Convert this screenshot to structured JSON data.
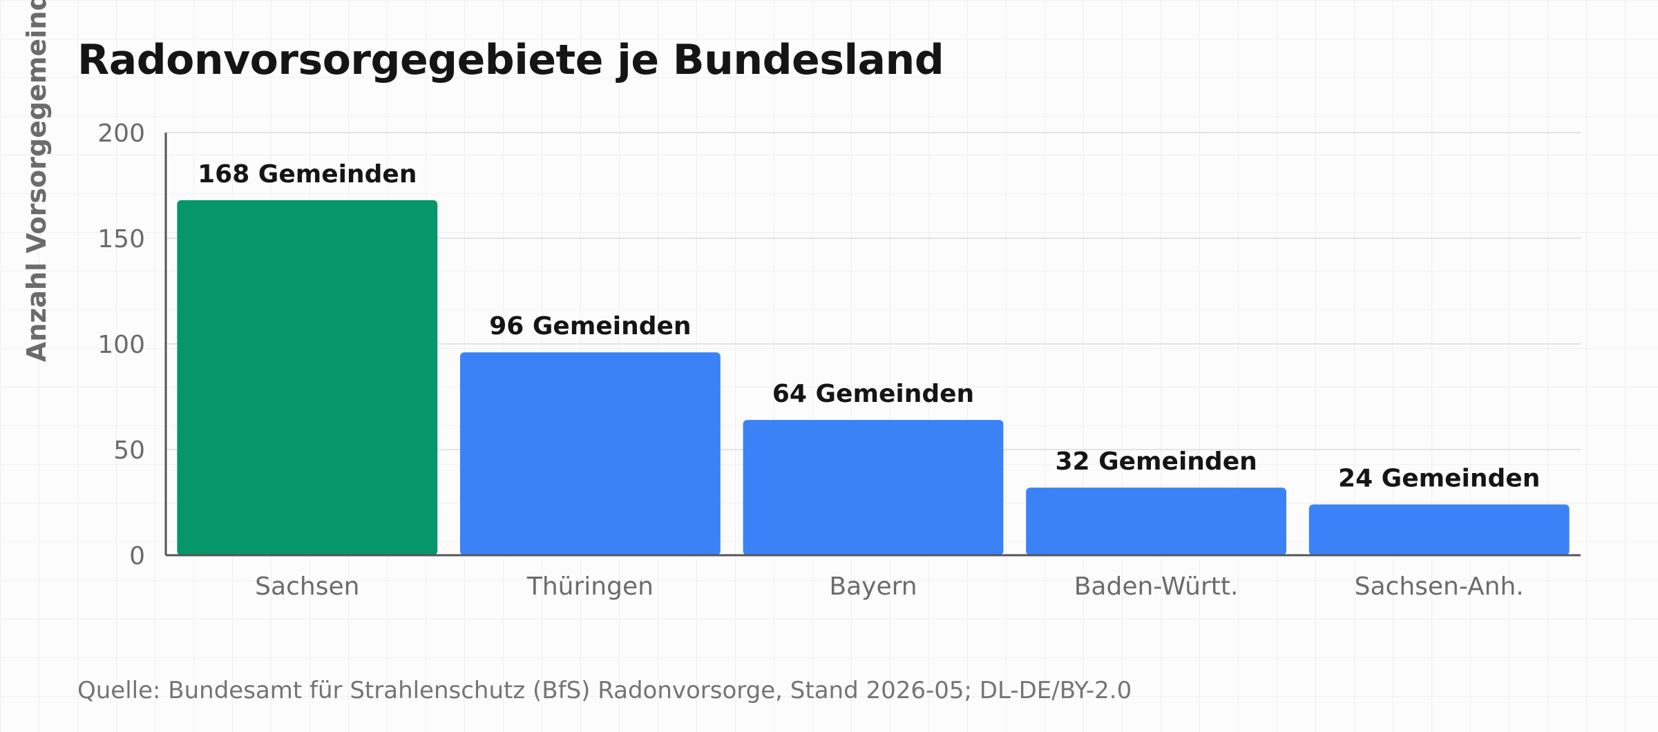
{
  "chart_data": {
    "type": "bar",
    "title": "Radonvorsorgegebiete je Bundesland",
    "ylabel": "Anzahl Vorsorgegemeinden",
    "xlabel": "",
    "categories": [
      "Sachsen",
      "Thüringen",
      "Bayern",
      "Baden-Württ.",
      "Sachsen-Anh."
    ],
    "values": [
      168,
      96,
      64,
      32,
      24
    ],
    "value_labels": [
      "168 Gemeinden",
      "96 Gemeinden",
      "64 Gemeinden",
      "32 Gemeinden",
      "24 Gemeinden"
    ],
    "bar_colors": [
      "#059669",
      "#3b82f6",
      "#3b82f6",
      "#3b82f6",
      "#3b82f6"
    ],
    "ylim": [
      0,
      200
    ],
    "yticks": [
      0,
      50,
      100,
      150,
      200
    ],
    "grid": true,
    "legend": "none"
  },
  "source": "Quelle: Bundesamt für Strahlenschutz (BfS) Radonvorsorge, Stand 2026-05; DL-DE/BY-2.0"
}
